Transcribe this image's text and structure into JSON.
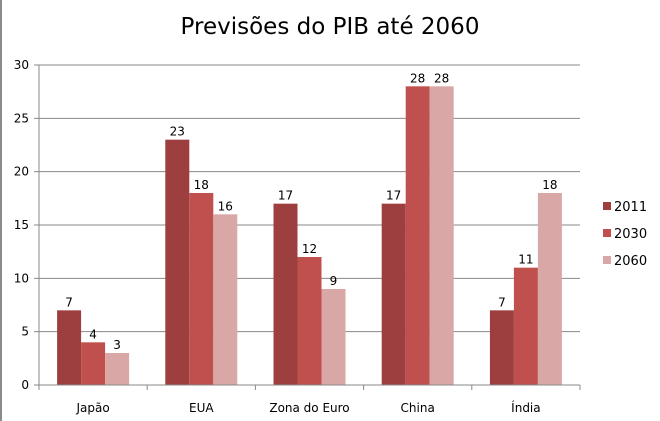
{
  "chart_data": {
    "type": "bar",
    "title": "Previsões do PIB até 2060",
    "xlabel": "",
    "ylabel": "",
    "ylim": [
      0,
      30
    ],
    "yticks": [
      0,
      5,
      10,
      15,
      20,
      25,
      30
    ],
    "grid": true,
    "legend_position": "right",
    "categories": [
      "Japão",
      "EUA",
      "Zona do Euro",
      "China",
      "Índia"
    ],
    "series": [
      {
        "name": "2011",
        "color": "#9c3f3e",
        "values": [
          7,
          23,
          17,
          17,
          7
        ]
      },
      {
        "name": "2030",
        "color": "#c0504d",
        "values": [
          4,
          18,
          12,
          28,
          11
        ]
      },
      {
        "name": "2060",
        "color": "#d9a7a6",
        "values": [
          3,
          16,
          9,
          28,
          18
        ]
      }
    ]
  }
}
